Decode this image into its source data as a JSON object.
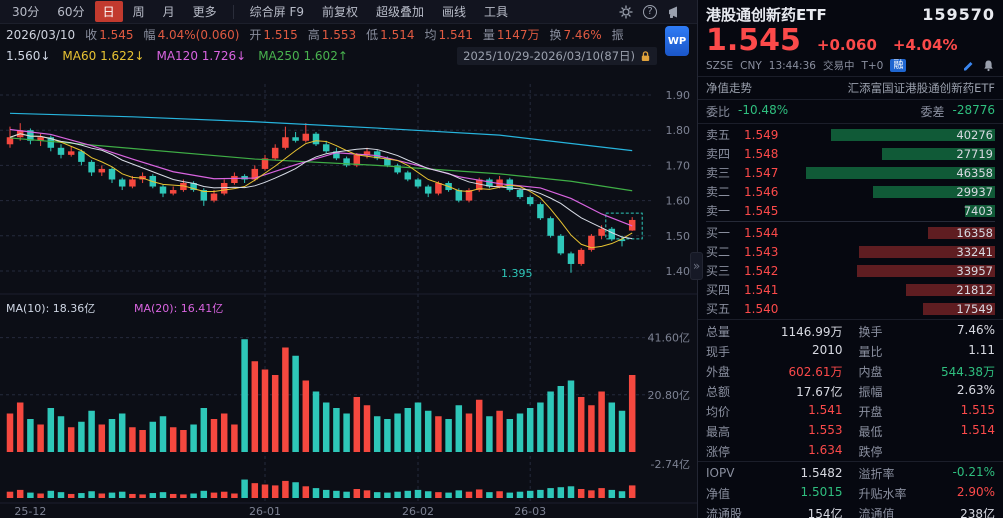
{
  "colors": {
    "up": "#f5483f",
    "down": "#2ec7b9",
    "grid": "#252a3c",
    "axis_text": "#7d8293",
    "accent_active": "#c23a2e",
    "red_text": "#fc4a4a",
    "green_text": "#2fbf7f"
  },
  "toolbar": {
    "periods": [
      "30分",
      "60分",
      "日",
      "周",
      "月",
      "更多"
    ],
    "active_period": "日",
    "menu": [
      "综合屏 F9",
      "前复权",
      "超级叠加",
      "画线",
      "工具"
    ]
  },
  "info_bar": {
    "date": "2026/03/10",
    "items": [
      [
        "收",
        "1.545"
      ],
      [
        "幅",
        "4.04%(0.060)"
      ],
      [
        "开",
        "1.515"
      ],
      [
        "高",
        "1.553"
      ],
      [
        "低",
        "1.514"
      ],
      [
        "均",
        "1.541"
      ],
      [
        "量",
        "1147万"
      ],
      [
        "换",
        "7.46%"
      ],
      [
        "振",
        ""
      ]
    ]
  },
  "ma_bar": {
    "items": [
      {
        "label": "",
        "value": "1.560↓",
        "color": "#cfd6e4"
      },
      {
        "label": "MA60",
        "value": "1.622↓",
        "color": "#e8c332"
      },
      {
        "label": "MA120",
        "value": "1.726↓",
        "color": "#d964e0"
      },
      {
        "label": "MA250",
        "value": "1.602↑",
        "color": "#49b34f"
      }
    ],
    "range": "2025/10/29-2026/03/10(87日)"
  },
  "wp_badge": "WP",
  "collapse_handle": "»",
  "chart_data": {
    "type": "candlestick",
    "price_axis": {
      "labels": [
        "1.90",
        "1.80",
        "1.70",
        "1.60",
        "1.50",
        "1.40"
      ],
      "values": [
        1.9,
        1.8,
        1.7,
        1.6,
        1.5,
        1.4
      ]
    },
    "volume_axis": [
      {
        "label": "41.60亿",
        "value": 41.6
      },
      {
        "label": "20.80亿",
        "value": 20.8
      }
    ],
    "volume_bottom_label": "-2.74亿",
    "vol_ma_labels": [
      {
        "text": "MA(10): 18.36亿",
        "color": "#cfd6e4"
      },
      {
        "text": "MA(20): 16.41亿",
        "color": "#d964e0"
      }
    ],
    "x_labels": [
      {
        "text": "25-12",
        "index": 2,
        "line": false
      },
      {
        "text": "26-01",
        "index": 25,
        "line": true
      },
      {
        "text": "26-02",
        "index": 40,
        "line": true
      },
      {
        "text": "26-03",
        "index": 51,
        "line": true
      }
    ],
    "low_annotation": {
      "text": "1.395",
      "index": 55,
      "price": 1.395
    },
    "candles": [
      [
        1.76,
        1.81,
        1.75,
        1.78
      ],
      [
        1.78,
        1.82,
        1.77,
        1.8
      ],
      [
        1.8,
        1.805,
        1.76,
        1.77
      ],
      [
        1.77,
        1.79,
        1.755,
        1.78
      ],
      [
        1.78,
        1.785,
        1.74,
        1.75
      ],
      [
        1.75,
        1.76,
        1.72,
        1.73
      ],
      [
        1.73,
        1.755,
        1.725,
        1.74
      ],
      [
        1.74,
        1.745,
        1.7,
        1.71
      ],
      [
        1.71,
        1.715,
        1.67,
        1.68
      ],
      [
        1.68,
        1.7,
        1.67,
        1.69
      ],
      [
        1.69,
        1.695,
        1.65,
        1.66
      ],
      [
        1.66,
        1.665,
        1.63,
        1.64
      ],
      [
        1.64,
        1.67,
        1.635,
        1.66
      ],
      [
        1.66,
        1.68,
        1.65,
        1.67
      ],
      [
        1.67,
        1.675,
        1.635,
        1.64
      ],
      [
        1.64,
        1.645,
        1.61,
        1.62
      ],
      [
        1.62,
        1.64,
        1.615,
        1.63
      ],
      [
        1.63,
        1.66,
        1.625,
        1.65
      ],
      [
        1.65,
        1.655,
        1.625,
        1.63
      ],
      [
        1.63,
        1.635,
        1.585,
        1.6
      ],
      [
        1.6,
        1.63,
        1.595,
        1.62
      ],
      [
        1.62,
        1.66,
        1.615,
        1.65
      ],
      [
        1.65,
        1.68,
        1.645,
        1.67
      ],
      [
        1.67,
        1.675,
        1.65,
        1.66
      ],
      [
        1.66,
        1.7,
        1.655,
        1.69
      ],
      [
        1.69,
        1.73,
        1.685,
        1.72
      ],
      [
        1.72,
        1.76,
        1.715,
        1.75
      ],
      [
        1.75,
        1.81,
        1.745,
        1.78
      ],
      [
        1.78,
        1.795,
        1.765,
        1.77
      ],
      [
        1.77,
        1.82,
        1.765,
        1.79
      ],
      [
        1.79,
        1.795,
        1.755,
        1.76
      ],
      [
        1.76,
        1.77,
        1.735,
        1.74
      ],
      [
        1.74,
        1.75,
        1.715,
        1.72
      ],
      [
        1.72,
        1.725,
        1.695,
        1.7
      ],
      [
        1.7,
        1.735,
        1.695,
        1.73
      ],
      [
        1.73,
        1.75,
        1.72,
        1.74
      ],
      [
        1.74,
        1.745,
        1.715,
        1.72
      ],
      [
        1.72,
        1.725,
        1.695,
        1.7
      ],
      [
        1.7,
        1.705,
        1.675,
        1.68
      ],
      [
        1.68,
        1.685,
        1.655,
        1.66
      ],
      [
        1.66,
        1.665,
        1.635,
        1.64
      ],
      [
        1.64,
        1.645,
        1.61,
        1.62
      ],
      [
        1.62,
        1.655,
        1.615,
        1.65
      ],
      [
        1.65,
        1.655,
        1.625,
        1.63
      ],
      [
        1.63,
        1.635,
        1.595,
        1.6
      ],
      [
        1.6,
        1.635,
        1.595,
        1.63
      ],
      [
        1.63,
        1.665,
        1.625,
        1.66
      ],
      [
        1.66,
        1.665,
        1.635,
        1.64
      ],
      [
        1.64,
        1.67,
        1.635,
        1.66
      ],
      [
        1.66,
        1.665,
        1.625,
        1.63
      ],
      [
        1.63,
        1.635,
        1.605,
        1.61
      ],
      [
        1.61,
        1.615,
        1.585,
        1.59
      ],
      [
        1.59,
        1.595,
        1.545,
        1.55
      ],
      [
        1.55,
        1.555,
        1.495,
        1.5
      ],
      [
        1.5,
        1.505,
        1.445,
        1.45
      ],
      [
        1.45,
        1.455,
        1.395,
        1.42
      ],
      [
        1.42,
        1.465,
        1.415,
        1.46
      ],
      [
        1.46,
        1.505,
        1.455,
        1.5
      ],
      [
        1.5,
        1.53,
        1.49,
        1.52
      ],
      [
        1.52,
        1.525,
        1.485,
        1.49
      ],
      [
        1.49,
        1.5,
        1.47,
        1.485
      ],
      [
        1.515,
        1.553,
        1.514,
        1.545
      ]
    ],
    "volumes": [
      14,
      18,
      12,
      10,
      16,
      13,
      9,
      11,
      15,
      10,
      12,
      14,
      9,
      8,
      11,
      13,
      9,
      8,
      10,
      16,
      12,
      14,
      10,
      41,
      33,
      30,
      28,
      38,
      35,
      26,
      22,
      18,
      16,
      14,
      20,
      17,
      13,
      12,
      14,
      16,
      18,
      15,
      13,
      12,
      17,
      14,
      19,
      13,
      15,
      12,
      14,
      16,
      18,
      22,
      24,
      26,
      20,
      17,
      22,
      18,
      15,
      28
    ],
    "overlay_lines": [
      {
        "name": "slow-ma-cyan",
        "color": "#27b4dd",
        "points": [
          [
            0,
            1.848
          ],
          [
            12,
            1.838
          ],
          [
            24,
            1.824
          ],
          [
            36,
            1.806
          ],
          [
            48,
            1.786
          ],
          [
            61,
            1.742
          ]
        ]
      },
      {
        "name": "slow-ma-green",
        "color": "#3fae46",
        "points": [
          [
            0,
            1.778
          ],
          [
            12,
            1.748
          ],
          [
            24,
            1.718
          ],
          [
            36,
            1.7
          ],
          [
            48,
            1.676
          ],
          [
            55,
            1.655
          ],
          [
            61,
            1.628
          ]
        ]
      },
      {
        "name": "ma-magenta",
        "color": "#d964e0",
        "points": [
          [
            0,
            1.802
          ],
          [
            4,
            1.788
          ],
          [
            8,
            1.756
          ],
          [
            12,
            1.718
          ],
          [
            16,
            1.682
          ],
          [
            20,
            1.662
          ],
          [
            24,
            1.664
          ],
          [
            28,
            1.702
          ],
          [
            32,
            1.736
          ],
          [
            36,
            1.728
          ],
          [
            40,
            1.7
          ],
          [
            44,
            1.668
          ],
          [
            48,
            1.648
          ],
          [
            52,
            1.636
          ],
          [
            55,
            1.606
          ],
          [
            58,
            1.562
          ],
          [
            61,
            1.528
          ]
        ]
      }
    ],
    "computed_ma": [
      {
        "window": 5,
        "color": "#e8c332"
      },
      {
        "window": 10,
        "color": "#d8dce6"
      }
    ]
  },
  "quote": {
    "title": "港股通创新药ETF",
    "code": "159570",
    "price": "1.545",
    "change": "+0.060",
    "change_pct": "+4.04%",
    "exchange": "SZSE",
    "currency": "CNY",
    "time": "13:44:36",
    "status": "交易中",
    "t_plus": "T+0",
    "margin_badge": "融",
    "subnav_left": "净值走势",
    "subnav_right": "汇添富国证港股通创新药ETF",
    "weibi_label": "委比",
    "weibi_value": "-10.48%",
    "weicha_label": "委差",
    "weicha_value": "-28776",
    "order_book": {
      "asks": [
        {
          "label": "卖五",
          "price": "1.549",
          "vol": "40276"
        },
        {
          "label": "卖四",
          "price": "1.548",
          "vol": "27719"
        },
        {
          "label": "卖三",
          "price": "1.547",
          "vol": "46358"
        },
        {
          "label": "卖二",
          "price": "1.546",
          "vol": "29937"
        },
        {
          "label": "卖一",
          "price": "1.545",
          "vol": "7403"
        }
      ],
      "bids": [
        {
          "label": "买一",
          "price": "1.544",
          "vol": "16358"
        },
        {
          "label": "买二",
          "price": "1.543",
          "vol": "33241"
        },
        {
          "label": "买三",
          "price": "1.542",
          "vol": "33957"
        },
        {
          "label": "买四",
          "price": "1.541",
          "vol": "21812"
        },
        {
          "label": "买五",
          "price": "1.540",
          "vol": "17549"
        }
      ]
    },
    "stats_main": [
      [
        {
          "label": "总量",
          "value": "1146.99万",
          "color": "white"
        },
        {
          "label": "换手",
          "value": "7.46%",
          "color": "white"
        }
      ],
      [
        {
          "label": "现手",
          "value": "2010",
          "color": "white"
        },
        {
          "label": "量比",
          "value": "1.11",
          "color": "white"
        }
      ],
      [
        {
          "label": "外盘",
          "value": "602.61万",
          "color": "red"
        },
        {
          "label": "内盘",
          "value": "544.38万",
          "color": "green"
        }
      ],
      [
        {
          "label": "总额",
          "value": "17.67亿",
          "color": "white"
        },
        {
          "label": "振幅",
          "value": "2.63%",
          "color": "white"
        }
      ],
      [
        {
          "label": "均价",
          "value": "1.541",
          "color": "red"
        },
        {
          "label": "开盘",
          "value": "1.515",
          "color": "red"
        }
      ],
      [
        {
          "label": "最高",
          "value": "1.553",
          "color": "red"
        },
        {
          "label": "最低",
          "value": "1.514",
          "color": "red"
        }
      ],
      [
        {
          "label": "涨停",
          "value": "1.634",
          "color": "red"
        },
        {
          "label": "跌停",
          "value": "",
          "color": "green"
        }
      ]
    ],
    "stats_iopv": [
      [
        {
          "label": "IOPV",
          "value": "1.5482",
          "color": "white"
        },
        {
          "label": "溢折率",
          "value": "-0.21%",
          "color": "green"
        }
      ],
      [
        {
          "label": "净值",
          "value": "1.5015",
          "color": "green"
        },
        {
          "label": "升贴水率",
          "value": "2.90%",
          "color": "red"
        }
      ],
      [
        {
          "label": "流通股",
          "value": "154亿",
          "color": "white"
        },
        {
          "label": "流通值",
          "value": "238亿",
          "color": "white"
        }
      ]
    ]
  }
}
